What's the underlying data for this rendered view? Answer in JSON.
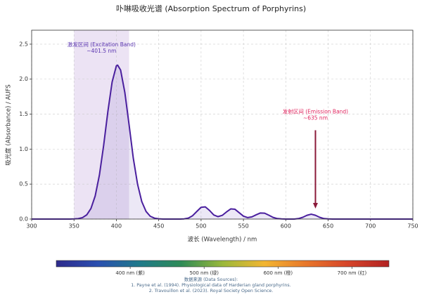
{
  "chart_data": {
    "type": "line",
    "title": "卟啉吸收光谱 (Absorption Spectrum of Porphyrins)",
    "xlabel": "波长 (Wavelength) / nm",
    "ylabel": "吸光度 (Absorbance) / AUFS",
    "x": [
      300,
      340,
      345,
      350,
      355,
      360,
      365,
      370,
      375,
      380,
      385,
      390,
      395,
      400,
      401.5,
      405,
      410,
      415,
      420,
      425,
      430,
      435,
      440,
      445,
      450,
      455,
      475,
      480,
      485,
      490,
      495,
      500,
      505,
      510,
      515,
      520,
      525,
      530,
      535,
      540,
      545,
      550,
      555,
      560,
      565,
      570,
      575,
      580,
      585,
      590,
      595,
      600,
      610,
      615,
      620,
      625,
      630,
      635,
      640,
      645,
      650,
      655,
      700,
      750
    ],
    "values": [
      0,
      0,
      0,
      0.002,
      0.006,
      0.021,
      0.06,
      0.151,
      0.33,
      0.63,
      1.054,
      1.54,
      1.96,
      2.19,
      2.2,
      2.13,
      1.81,
      1.35,
      0.87,
      0.5,
      0.25,
      0.11,
      0.04,
      0.013,
      0.004,
      0,
      0,
      0.003,
      0.014,
      0.048,
      0.109,
      0.168,
      0.174,
      0.123,
      0.058,
      0.035,
      0.053,
      0.102,
      0.145,
      0.14,
      0.091,
      0.042,
      0.021,
      0.031,
      0.061,
      0.087,
      0.084,
      0.055,
      0.024,
      0.007,
      0.002,
      0,
      0,
      0.007,
      0.025,
      0.054,
      0.07,
      0.054,
      0.025,
      0.007,
      0.002,
      0,
      0,
      0
    ],
    "color": "#4a1f9e",
    "fill_color": "#7b5cc0",
    "xlim": [
      300,
      750
    ],
    "xticks": [
      300,
      350,
      400,
      450,
      500,
      550,
      600,
      650,
      700,
      750
    ],
    "ylim": [
      0,
      2.7
    ],
    "yticks": [
      {
        "value": 0,
        "label": "0.0"
      },
      0.5,
      {
        "value": 1,
        "label": "1.0"
      },
      1.5,
      {
        "value": 2,
        "label": "2.0"
      },
      2.5
    ],
    "grid": true,
    "excitation_band": {
      "range": [
        350,
        415
      ],
      "color": "#b99ad8",
      "label": "激发区间 (Excitation Band)",
      "peak_label": "~401.5 nm",
      "text_color": "#5a35b0"
    },
    "emission_annotation": {
      "x": 635,
      "y_start": 1.27,
      "y_end": 0.15,
      "label": "发射区间 (Emission Band)",
      "peak_label": "~635 nm",
      "text_color": "#e0245e",
      "arrow_color": "#8b1a3a"
    },
    "colorbar": {
      "range": [
        300,
        750
      ],
      "colors": [
        "#2e2a8c",
        "#2a4fb0",
        "#1f7a8a",
        "#2e8b57",
        "#9ab83a",
        "#f2b632",
        "#e8772a",
        "#d6452a",
        "#b22222"
      ],
      "ticks": [
        {
          "value": 400,
          "label": "400 nm (紫)"
        },
        {
          "value": 500,
          "label": "500 nm (绿)"
        },
        {
          "value": 600,
          "label": "600 nm (橙)"
        },
        {
          "value": 700,
          "label": "700 nm (红)"
        }
      ]
    },
    "sources": [
      "数据来源 (Data Sources):",
      "1. Payne et al. (1994). Physiological data of Harderian gland porphyrins.",
      "2. Travouillon et al. (2023). Royal Society Open Science."
    ]
  }
}
